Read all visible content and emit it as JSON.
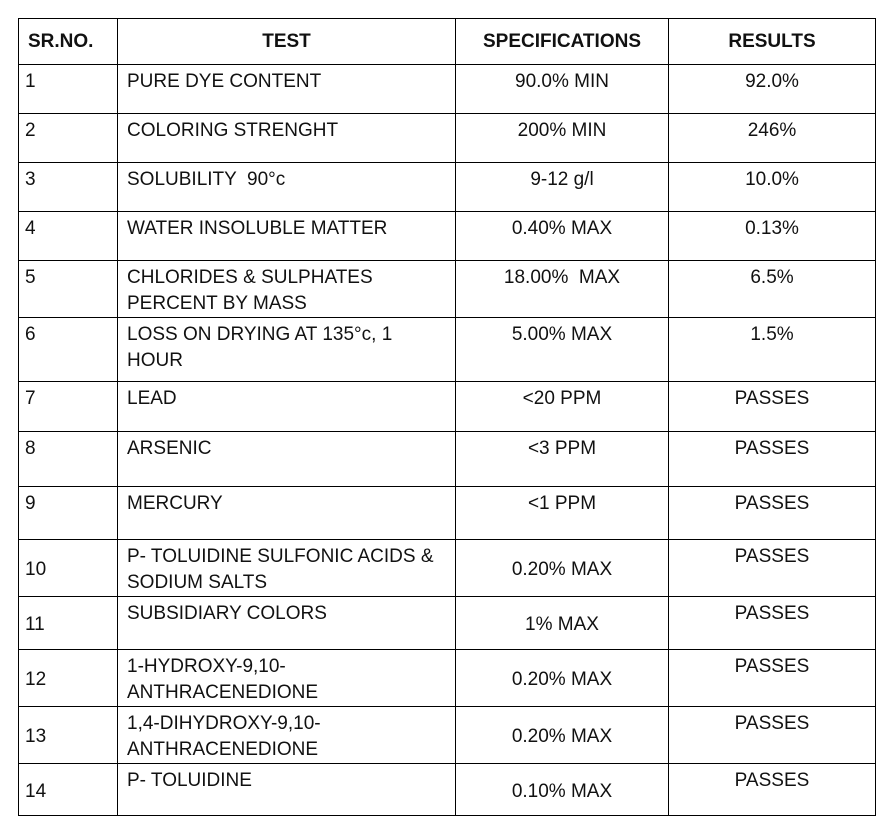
{
  "table": {
    "headers": [
      "SR.NO.",
      "TEST",
      "SPECIFICATIONS",
      "RESULTS"
    ],
    "rows": [
      [
        "1",
        "PURE DYE CONTENT",
        "90.0% MIN",
        "92.0%"
      ],
      [
        "2",
        "COLORING STRENGHT",
        "200% MIN",
        "246%"
      ],
      [
        "3",
        "SOLUBILITY  90°c",
        "9-12 g/l",
        "10.0%"
      ],
      [
        "4",
        "WATER INSOLUBLE MATTER",
        "0.40% MAX",
        "0.13%"
      ],
      [
        "5",
        "CHLORIDES & SULPHATES PERCENT BY MASS",
        "18.00%  MAX",
        "6.5%"
      ],
      [
        "6",
        "LOSS ON DRYING AT 135°c, 1 HOUR",
        "5.00% MAX",
        "1.5%"
      ],
      [
        "7",
        "LEAD",
        "<20 PPM",
        "PASSES"
      ],
      [
        "8",
        "ARSENIC",
        "<3 PPM",
        "PASSES"
      ],
      [
        "9",
        "MERCURY",
        "<1 PPM",
        "PASSES"
      ],
      [
        "10",
        "P- TOLUIDINE SULFONIC ACIDS & SODIUM SALTS",
        "0.20% MAX",
        "PASSES"
      ],
      [
        "11",
        "SUBSIDIARY COLORS",
        "1% MAX",
        "PASSES"
      ],
      [
        "12",
        "1-HYDROXY-9,10-ANTHRACENEDIONE",
        "0.20% MAX",
        "PASSES"
      ],
      [
        "13",
        "1,4-DIHYDROXY-9,10-ANTHRACENEDIONE",
        "0.20% MAX",
        "PASSES"
      ],
      [
        "14",
        "P- TOLUIDINE",
        "0.10% MAX",
        "PASSES"
      ]
    ]
  }
}
